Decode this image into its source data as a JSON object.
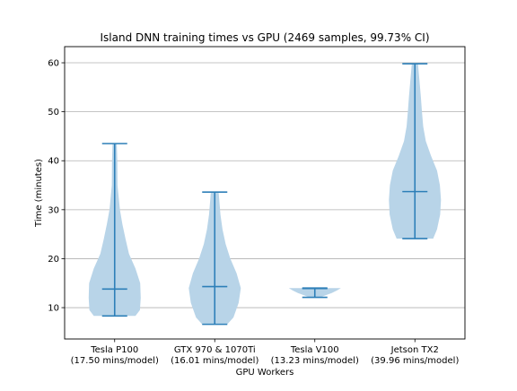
{
  "chart_data": {
    "type": "violin",
    "title": "Island DNN training times vs GPU (2469 samples, 99.73% CI)",
    "xlabel": "GPU Workers",
    "ylabel": "Time (minutes)",
    "ylim": [
      3.6,
      63.3
    ],
    "yticks": [
      10,
      20,
      30,
      40,
      50,
      60
    ],
    "grid": "horizontal",
    "categories": [
      {
        "label": "Tesla P100",
        "sublabel": "(17.50 mins/model)"
      },
      {
        "label": "GTX 970 & 1070Ti",
        "sublabel": "(16.01 mins/model)"
      },
      {
        "label": "Tesla V100",
        "sublabel": "(13.23 mins/model)"
      },
      {
        "label": "Jetson TX2",
        "sublabel": "(39.96 mins/model)"
      }
    ],
    "series": [
      {
        "min": 8.3,
        "median": 13.8,
        "max": 43.5,
        "profile": [
          [
            8.3,
            0.8
          ],
          [
            9.5,
            0.97
          ],
          [
            12,
            1.0
          ],
          [
            15,
            0.98
          ],
          [
            18,
            0.8
          ],
          [
            21,
            0.55
          ],
          [
            24,
            0.42
          ],
          [
            27,
            0.3
          ],
          [
            30,
            0.2
          ],
          [
            35,
            0.11
          ],
          [
            40,
            0.1
          ],
          [
            43.5,
            0.08
          ]
        ]
      },
      {
        "min": 6.6,
        "median": 14.3,
        "max": 33.6,
        "profile": [
          [
            6.6,
            0.48
          ],
          [
            8,
            0.72
          ],
          [
            11,
            0.92
          ],
          [
            14,
            1.0
          ],
          [
            17,
            0.84
          ],
          [
            20,
            0.6
          ],
          [
            23,
            0.42
          ],
          [
            26,
            0.3
          ],
          [
            29,
            0.22
          ],
          [
            33.6,
            0.15
          ]
        ]
      },
      {
        "min": 12.1,
        "median": 13.9,
        "max": 14.0,
        "profile": [
          [
            12.1,
            0.2
          ],
          [
            12.5,
            0.4
          ],
          [
            13,
            0.65
          ],
          [
            13.5,
            0.85
          ],
          [
            14,
            1.0
          ]
        ]
      },
      {
        "min": 24.1,
        "median": 33.7,
        "max": 59.8,
        "profile": [
          [
            24.1,
            0.7
          ],
          [
            26,
            0.85
          ],
          [
            29,
            0.97
          ],
          [
            32,
            1.0
          ],
          [
            35,
            0.96
          ],
          [
            38,
            0.85
          ],
          [
            41,
            0.62
          ],
          [
            44,
            0.42
          ],
          [
            47,
            0.32
          ],
          [
            50,
            0.27
          ],
          [
            53,
            0.23
          ],
          [
            56,
            0.18
          ],
          [
            59.8,
            0.12
          ]
        ]
      }
    ],
    "body_color": "#b8d4e8",
    "line_color": "#2d7fb8"
  }
}
